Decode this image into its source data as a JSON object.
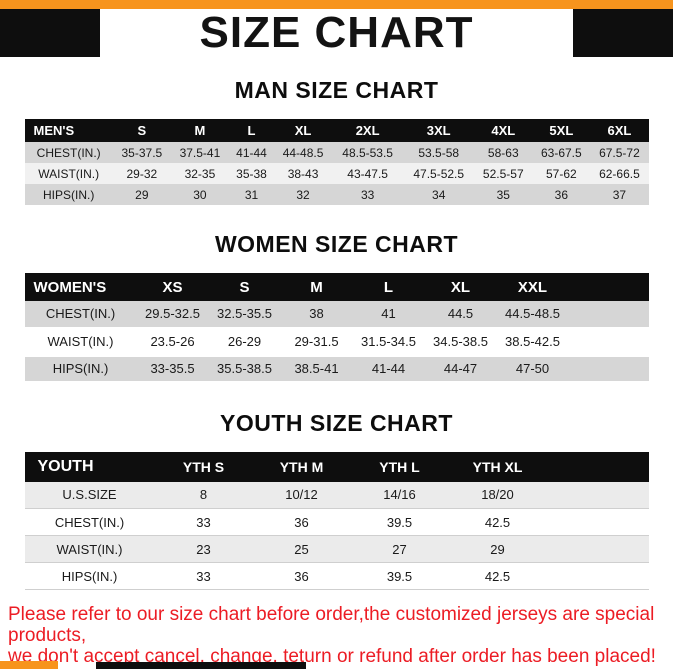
{
  "page": {
    "title": "SIZE CHART",
    "footer": {
      "line1": "Please refer to our size chart before order,the customized jerseys are special products,",
      "line2": "we don't accept cancel, change, teturn or refund after order has been placed!"
    }
  },
  "colors": {
    "accent_orange": "#F7941D",
    "frame_black": "#0E0E0E",
    "row_dark": "#D6D6D6",
    "row_light": "#F1F1F1",
    "youth_row_shade": "#EBEBEB",
    "footer_red": "#EC1C24"
  },
  "sections": [
    {
      "heading": "MAN SIZE CHART",
      "table": {
        "header": [
          "MEN'S",
          "S",
          "M",
          "L",
          "XL",
          "2XL",
          "3XL",
          "4XL",
          "5XL",
          "6XL"
        ],
        "rows": [
          [
            "CHEST(IN.)",
            "35-37.5",
            "37.5-41",
            "41-44",
            "44-48.5",
            "48.5-53.5",
            "53.5-58",
            "58-63",
            "63-67.5",
            "67.5-72"
          ],
          [
            "WAIST(IN.)",
            "29-32",
            "32-35",
            "35-38",
            "38-43",
            "43-47.5",
            "47.5-52.5",
            "52.5-57",
            "57-62",
            "62-66.5"
          ],
          [
            "HIPS(IN.)",
            "29",
            "30",
            "31",
            "32",
            "33",
            "34",
            "35",
            "36",
            "37"
          ]
        ]
      }
    },
    {
      "heading": "WOMEN SIZE CHART",
      "table": {
        "header": [
          "WOMEN'S",
          "XS",
          "S",
          "M",
          "L",
          "XL",
          "XXL"
        ],
        "rows": [
          [
            "CHEST(IN.)",
            "29.5-32.5",
            "32.5-35.5",
            "38",
            "41",
            "44.5",
            "44.5-48.5"
          ],
          [
            "WAIST(IN.)",
            "23.5-26",
            "26-29",
            "29-31.5",
            "31.5-34.5",
            "34.5-38.5",
            "38.5-42.5"
          ],
          [
            "HIPS(IN.)",
            "33-35.5",
            "35.5-38.5",
            "38.5-41",
            "41-44",
            "44-47",
            "47-50"
          ]
        ]
      }
    },
    {
      "heading": "YOUTH SIZE CHART",
      "table": {
        "header": [
          "YOUTH",
          "YTH S",
          "YTH M",
          "YTH L",
          "YTH XL"
        ],
        "rows": [
          [
            "U.S.SIZE",
            "8",
            "10/12",
            "14/16",
            "18/20"
          ],
          [
            "CHEST(IN.)",
            "33",
            "36",
            "39.5",
            "42.5"
          ],
          [
            "WAIST(IN.)",
            "23",
            "25",
            "27",
            "29"
          ],
          [
            "HIPS(IN.)",
            "33",
            "36",
            "39.5",
            "42.5"
          ]
        ]
      }
    }
  ]
}
